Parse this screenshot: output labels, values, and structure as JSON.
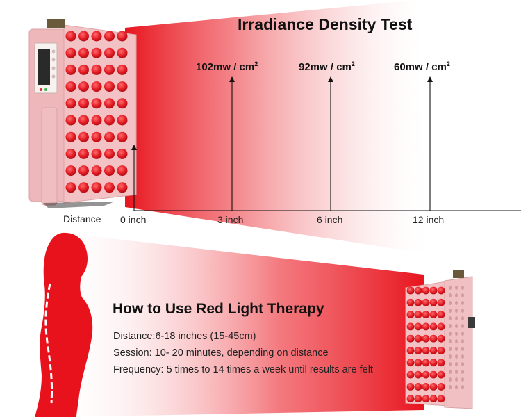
{
  "top": {
    "title": "Irradiance Density Test",
    "readings": [
      {
        "value": "102mw / cm",
        "exp": "2"
      },
      {
        "value": "92mw / cm",
        "exp": "2"
      },
      {
        "value": "60mw / cm",
        "exp": "2"
      }
    ],
    "axis_label": "Distance",
    "distance_ticks": [
      "0 inch",
      "3 inch",
      "6 inch",
      "12 inch"
    ]
  },
  "bottom": {
    "heading": "How to Use Red Light Therapy",
    "lines": [
      "Distance:6-18 inches (15-45cm)",
      "Session: 10- 20 minutes, depending on distance",
      "Frequency: 5 times to 14 times a week until results are felt"
    ]
  },
  "colors": {
    "beam": "#e8141e",
    "panel": "#f3c2c4",
    "led": "#e21a22",
    "silhouette": "#e8121c"
  },
  "icons": [
    "red-light-panel-icon",
    "human-silhouette-icon"
  ]
}
